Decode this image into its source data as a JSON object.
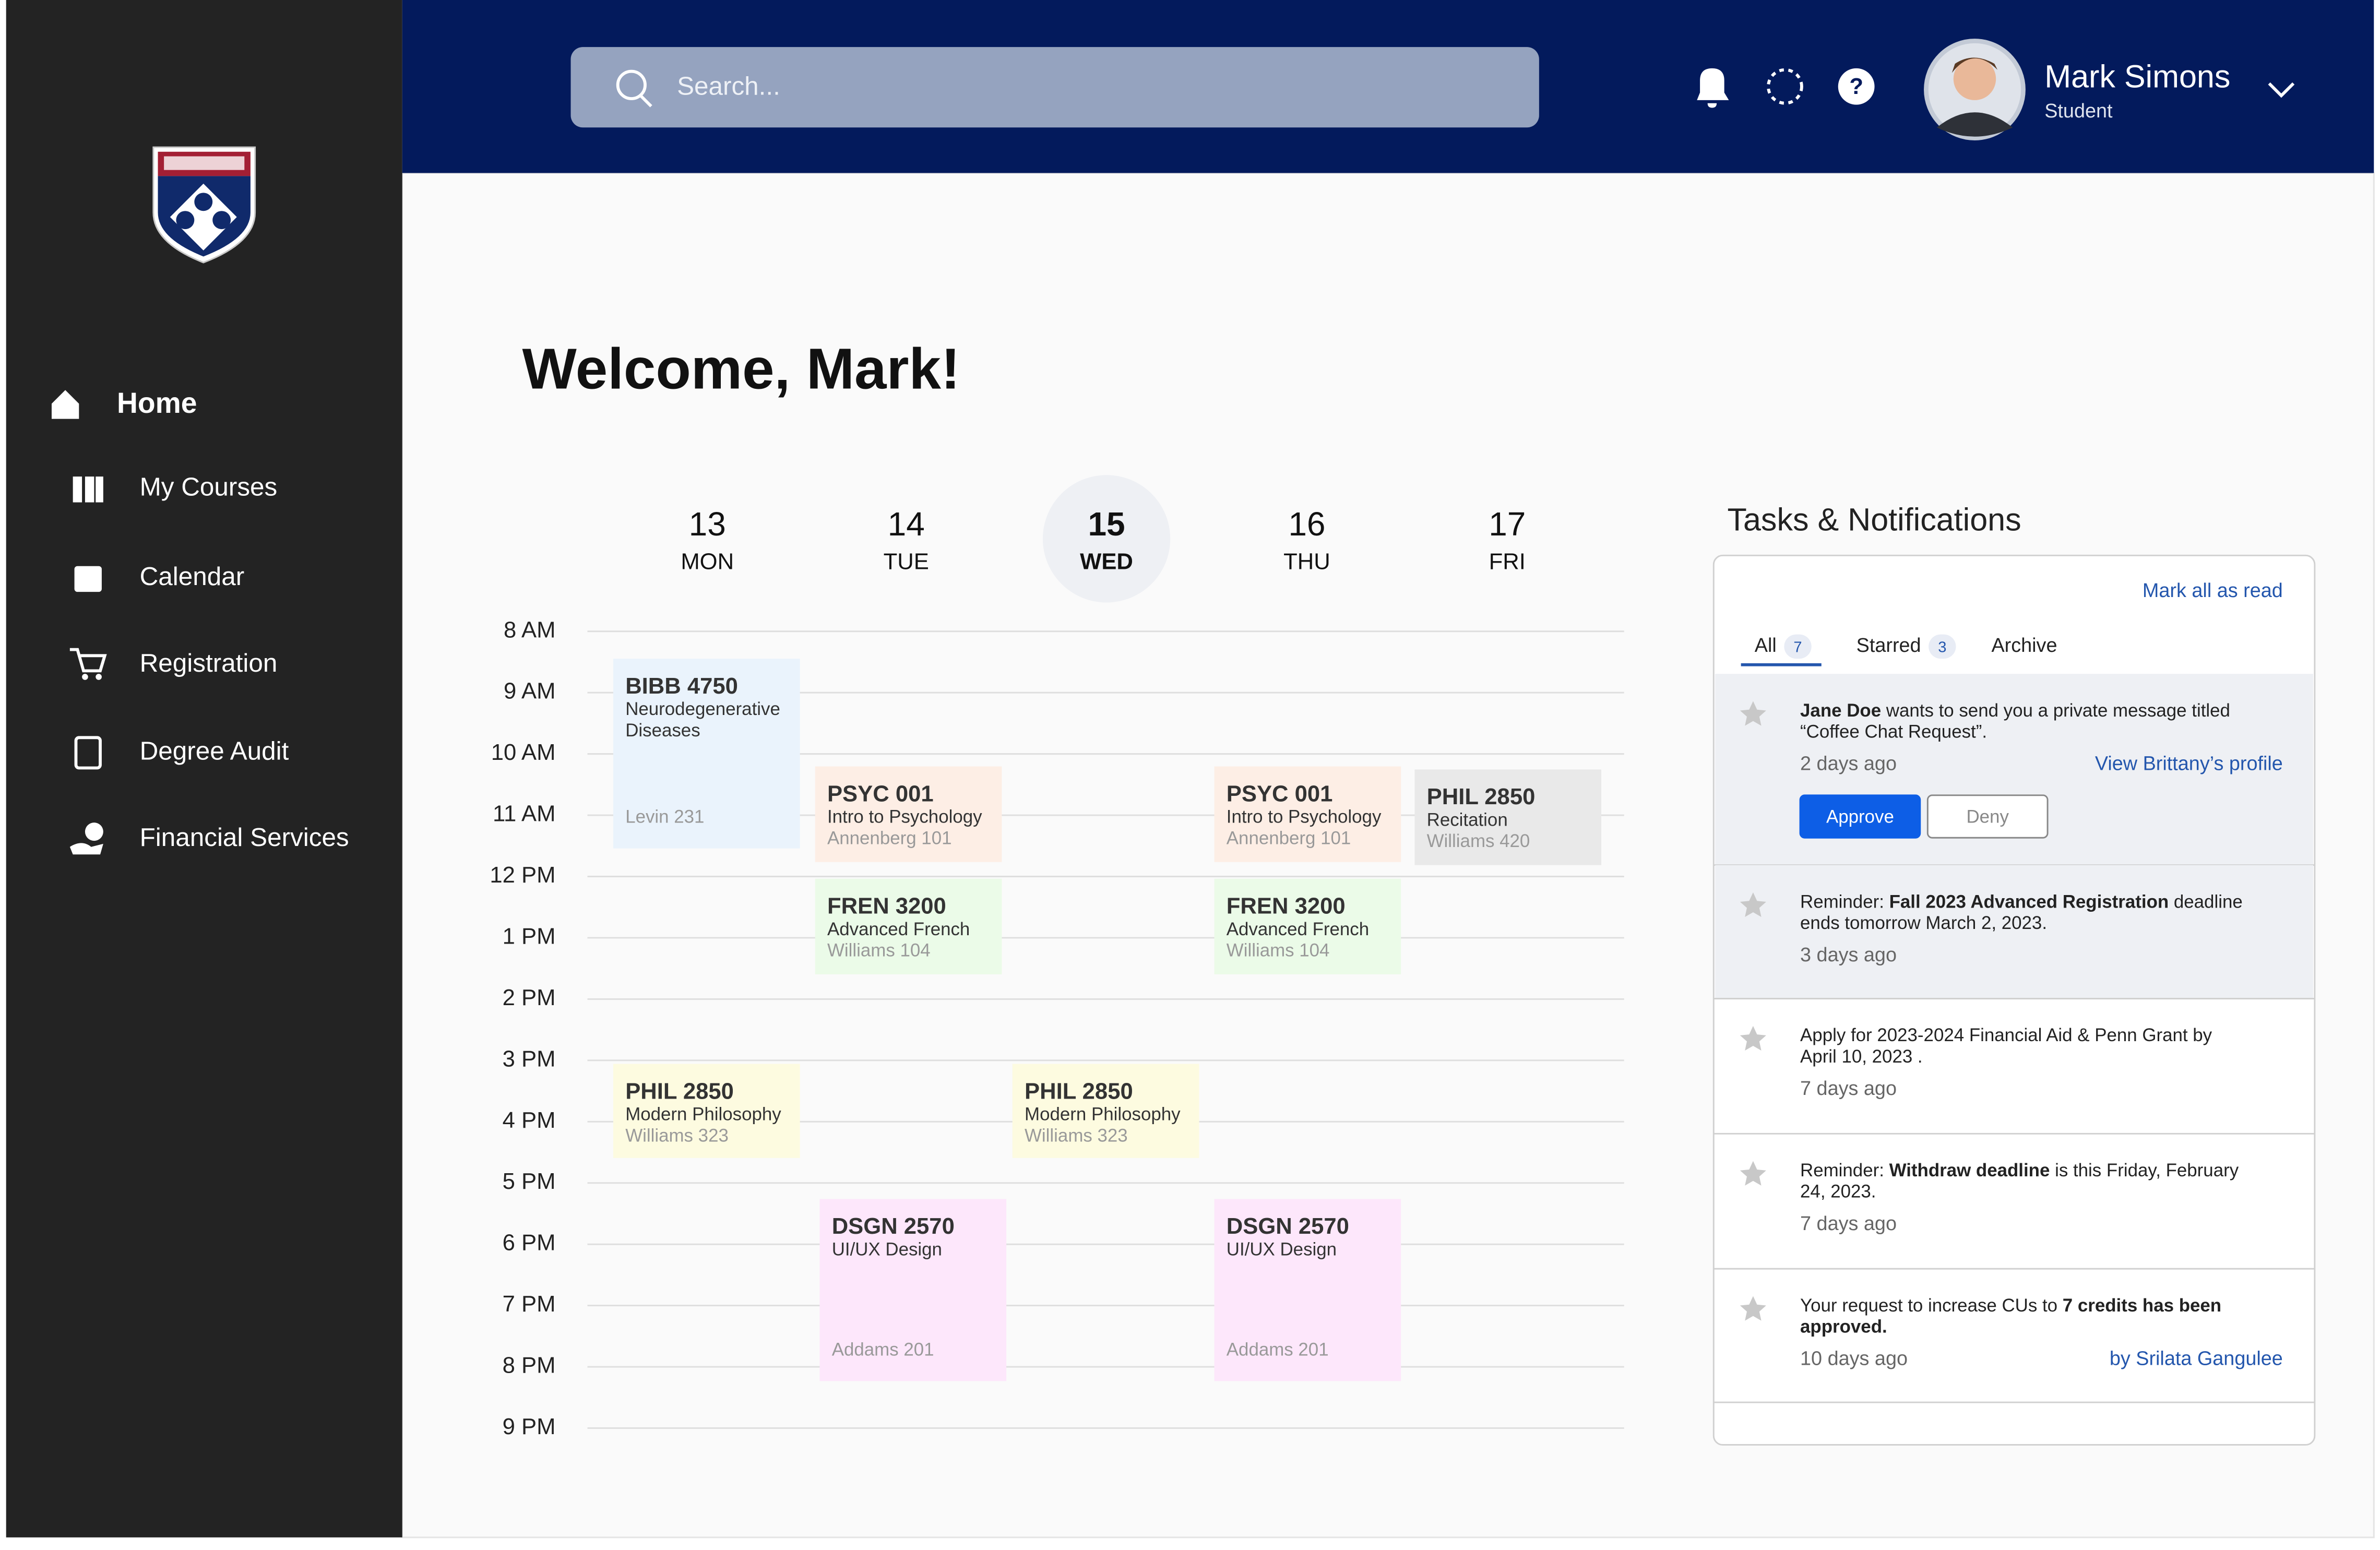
{
  "sidebar": {
    "nav": [
      "Home",
      "My Courses",
      "Calendar",
      "Registration",
      "Degree Audit",
      "Financial Services"
    ]
  },
  "header": {
    "search_placeholder": "Search...",
    "user": {
      "name": "Mark Simons",
      "role": "Student"
    }
  },
  "welcome": "Welcome, Mark!",
  "calendar": {
    "days": [
      {
        "date": "13",
        "weekday": "MON"
      },
      {
        "date": "14",
        "weekday": "TUE"
      },
      {
        "date": "15",
        "weekday": "WED"
      },
      {
        "date": "16",
        "weekday": "THU"
      },
      {
        "date": "17",
        "weekday": "FRI"
      }
    ],
    "hours": [
      "8 AM",
      "9 AM",
      "10 AM",
      "11 AM",
      "12 PM",
      "1 PM",
      "2 PM",
      "3 PM",
      "4 PM",
      "5 PM",
      "6 PM",
      "7 PM",
      "8 PM",
      "9 PM"
    ],
    "events": [
      {
        "code": "BIBB 4750",
        "title": [
          "Neurodegenerative",
          "Diseases"
        ],
        "room": "Levin 231"
      },
      {
        "code": "PSYC 001",
        "title": [
          "Intro to Psychology"
        ],
        "room": "Annenberg 101"
      },
      {
        "code": "PSYC 001",
        "title": [
          "Intro to Psychology"
        ],
        "room": "Annenberg 101"
      },
      {
        "code": "PHIL 2850",
        "title": [
          "Recitation"
        ],
        "room": "Williams 420"
      },
      {
        "code": "FREN 3200",
        "title": [
          "Advanced French"
        ],
        "room": "Williams 104"
      },
      {
        "code": "FREN 3200",
        "title": [
          "Advanced French"
        ],
        "room": "Williams 104"
      },
      {
        "code": "PHIL 2850",
        "title": [
          "Modern Philosophy"
        ],
        "room": "Williams 323"
      },
      {
        "code": "PHIL 2850",
        "title": [
          "Modern Philosophy"
        ],
        "room": "Williams 323"
      },
      {
        "code": "DSGN 2570",
        "title": [
          "UI/UX Design"
        ],
        "room": "Addams 201"
      },
      {
        "code": "DSGN 2570",
        "title": [
          "UI/UX Design"
        ],
        "room": "Addams 201"
      }
    ]
  },
  "tasks": {
    "title": "Tasks & Notifications",
    "mark_all": "Mark all as read",
    "tabs": [
      {
        "label": "All",
        "count": "7"
      },
      {
        "label": "Starred",
        "count": "3"
      },
      {
        "label": "Archive"
      }
    ],
    "items": [
      {
        "lines": [
          [
            {
              "text": "Jane Doe",
              "bold": true
            },
            {
              "text": " wants to send you a private message titled"
            }
          ],
          [
            {
              "text": "“Coffee Chat Request”."
            }
          ]
        ],
        "time": "2 days ago",
        "link": "View Brittany’s profile",
        "buttons": [
          "Approve",
          "Deny"
        ]
      },
      {
        "lines": [
          [
            {
              "text": "Reminder: "
            },
            {
              "text": "Fall 2023 Advanced Registration",
              "bold": true
            },
            {
              "text": " deadline"
            }
          ],
          [
            {
              "text": "ends tomorrow March 2, 2023."
            }
          ]
        ],
        "time": "3 days ago"
      },
      {
        "lines": [
          [
            {
              "text": "Apply for 2023-2024 Financial Aid & Penn Grant by"
            }
          ],
          [
            {
              "text": "April 10, 2023 ."
            }
          ]
        ],
        "time": "7 days ago"
      },
      {
        "lines": [
          [
            {
              "text": "Reminder: "
            },
            {
              "text": "Withdraw deadline",
              "bold": true
            },
            {
              "text": " is this Friday, February"
            }
          ],
          [
            {
              "text": "24, 2023."
            }
          ]
        ],
        "time": "7 days ago"
      },
      {
        "lines": [
          [
            {
              "text": "Your request to increase CUs to "
            },
            {
              "text": "7 credits has been",
              "bold": true
            }
          ],
          [
            {
              "text": "approved.",
              "bold": true
            }
          ]
        ],
        "time": "10 days ago",
        "link": "by Srilata Gangulee"
      }
    ]
  }
}
